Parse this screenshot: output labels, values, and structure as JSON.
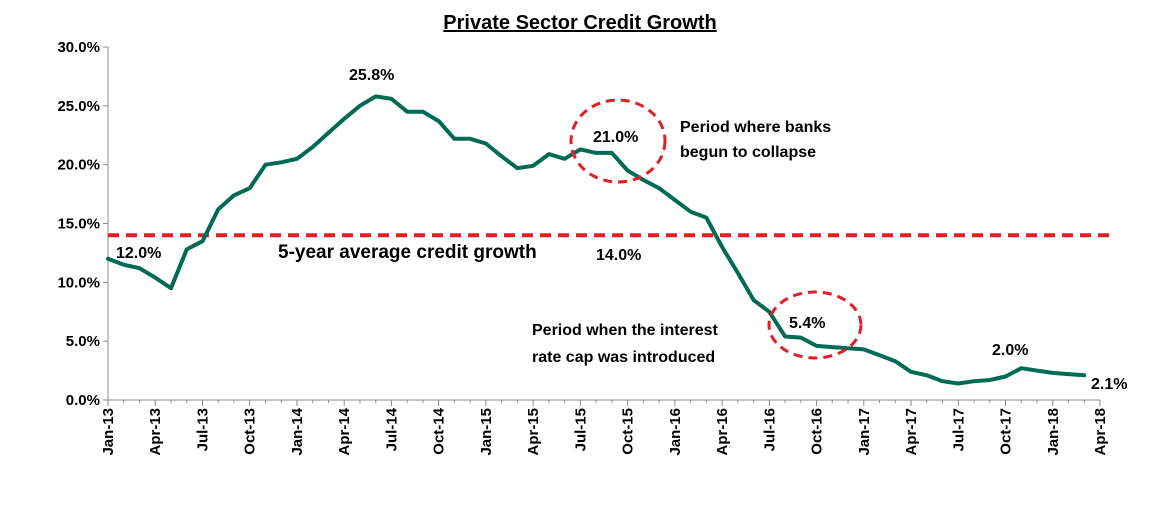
{
  "chart_data": {
    "type": "line",
    "title": "Private Sector Credit Growth",
    "xlabel": "",
    "ylabel": "",
    "ylim": [
      0,
      30
    ],
    "yticks": [
      "0.0%",
      "5.0%",
      "10.0%",
      "15.0%",
      "20.0%",
      "25.0%",
      "30.0%"
    ],
    "xticks": [
      "Jan-13",
      "Apr-13",
      "Jul-13",
      "Oct-13",
      "Jan-14",
      "Apr-14",
      "Jul-14",
      "Oct-14",
      "Jan-15",
      "Apr-15",
      "Jul-15",
      "Oct-15",
      "Jan-16",
      "Apr-16",
      "Jul-16",
      "Oct-16",
      "Jan-17",
      "Apr-17",
      "Jul-17",
      "Oct-17",
      "Jan-18",
      "Apr-18"
    ],
    "series": [
      {
        "name": "",
        "color": "#006b54",
        "x": [
          "Jan-13",
          "Feb-13",
          "Mar-13",
          "Apr-13",
          "May-13",
          "Jun-13",
          "Jul-13",
          "Aug-13",
          "Sep-13",
          "Oct-13",
          "Nov-13",
          "Dec-13",
          "Jan-14",
          "Feb-14",
          "Mar-14",
          "Apr-14",
          "May-14",
          "Jun-14",
          "Jul-14",
          "Aug-14",
          "Sep-14",
          "Oct-14",
          "Nov-14",
          "Dec-14",
          "Jan-15",
          "Feb-15",
          "Mar-15",
          "Apr-15",
          "May-15",
          "Jun-15",
          "Jul-15",
          "Aug-15",
          "Sep-15",
          "Oct-15",
          "Nov-15",
          "Dec-15",
          "Jan-16",
          "Feb-16",
          "Mar-16",
          "Apr-16",
          "May-16",
          "Jun-16",
          "Jul-16",
          "Aug-16",
          "Sep-16",
          "Oct-16",
          "Nov-16",
          "Dec-16",
          "Jan-17",
          "Feb-17",
          "Mar-17",
          "Apr-17",
          "May-17",
          "Jun-17",
          "Jul-17",
          "Aug-17",
          "Sep-17",
          "Oct-17",
          "Nov-17",
          "Dec-17",
          "Jan-18",
          "Feb-18",
          "Mar-18"
        ],
        "values": [
          12.0,
          11.5,
          11.2,
          10.4,
          9.5,
          12.8,
          13.5,
          16.2,
          17.4,
          18.0,
          20.0,
          20.2,
          20.5,
          21.5,
          22.7,
          23.9,
          25.0,
          25.8,
          25.6,
          24.5,
          24.5,
          23.7,
          22.2,
          22.2,
          21.8,
          20.7,
          19.7,
          19.9,
          20.9,
          20.5,
          21.3,
          21.0,
          21.0,
          19.5,
          18.7,
          18.0,
          17.0,
          16.0,
          15.5,
          13.0,
          10.8,
          8.5,
          7.5,
          5.4,
          5.3,
          4.6,
          4.5,
          4.4,
          4.3,
          3.8,
          3.3,
          2.4,
          2.1,
          1.6,
          1.4,
          1.6,
          1.7,
          2.0,
          2.7,
          2.5,
          2.3,
          2.2,
          2.1
        ]
      },
      {
        "name": "",
        "color": "#e31e24",
        "style": "dashed",
        "x": [
          "Jan-13",
          "Mar-18"
        ],
        "values": [
          14.0,
          14.0
        ]
      }
    ],
    "annotations": {
      "start_label": "12.0%",
      "peak_label": "25.8%",
      "collapse_value": "21.0%",
      "collapse_text": [
        "Period where banks",
        "begun to collapse"
      ],
      "average_text": "5-year average credit growth",
      "average_value": "14.0%",
      "cap_text": [
        "Period when the interest",
        "rate cap was introduced"
      ],
      "cap_value": "5.4%",
      "recent_label": "2.0%",
      "end_label": "2.1%"
    },
    "colors": {
      "line": "#006b54",
      "average_line": "#e31e24",
      "highlight_circle": "#e31e24"
    },
    "grid": false,
    "legend": "none"
  }
}
